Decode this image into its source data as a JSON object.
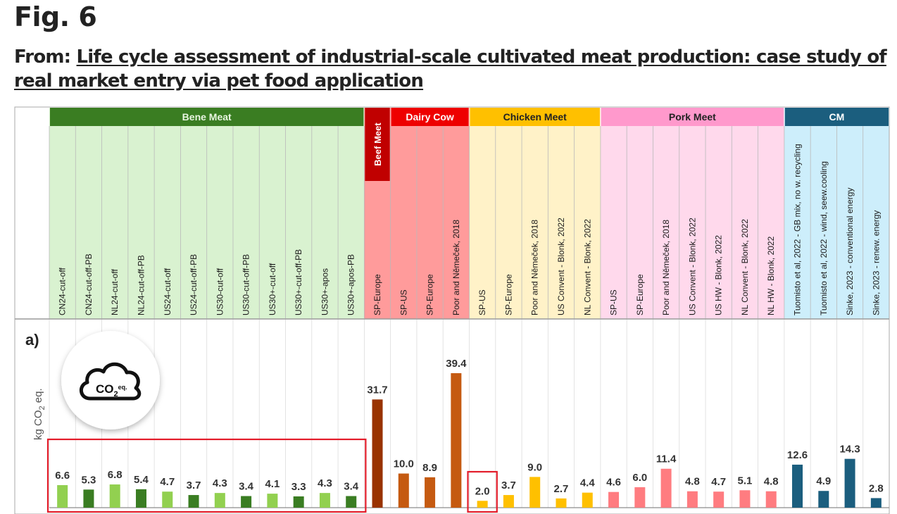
{
  "figure": {
    "label": "Fig. 6",
    "from_prefix": "From: ",
    "article_title": "Life cycle assessment of industrial-scale cultivated meat production: case study of real market entry via pet food application",
    "panel_label": "a)",
    "icon": {
      "name": "co2-cloud-icon",
      "text_main": "CO",
      "text_sub": "2",
      "text_sup": "eq."
    }
  },
  "chart_data": {
    "type": "bar",
    "title": "",
    "xlabel": "",
    "ylabel": "kg CO2 eq.",
    "ylim": [
      0,
      40
    ],
    "grid": "vertical separators only",
    "legend": "none (group headers on top)",
    "groups": [
      {
        "name": "Bene Meat",
        "header_color": "#3a7d22",
        "cell_color": "#d9f2d0",
        "start": 0,
        "count": 12
      },
      {
        "name": "Beef Meet",
        "header_color": "#c00000",
        "cell_color": "#ff9b9b",
        "start": 12,
        "count": 1,
        "vertical": true
      },
      {
        "name": "Dairy Cow",
        "header_color": "#ee0000",
        "cell_color": "#ff9b9b",
        "start": 13,
        "count": 3
      },
      {
        "name": "Chicken Meet",
        "header_color": "#ffc000",
        "cell_color": "#fff2c8",
        "start": 16,
        "count": 5
      },
      {
        "name": "Pork Meet",
        "header_color": "#ff99cc",
        "cell_color": "#ffd9ec",
        "start": 21,
        "count": 7
      },
      {
        "name": "CM",
        "header_color": "#1b5e7e",
        "cell_color": "#cdeefb",
        "start": 28,
        "count": 4
      }
    ],
    "categories": [
      "CN24-cut-off",
      "CN24-cut-off-PB",
      "NL24-cut-off",
      "NL24-cut-off-PB",
      "US24-cut-off",
      "US24-cut-off-PB",
      "US30-cut-off",
      "US30-cut-off-PB",
      "US30+-cut-off",
      "US30+-cut-off-PB",
      "US30+-apos",
      "US30+-apos-PB",
      "SP-Europe",
      "SP-US",
      "SP-Europe",
      "Poor and Němeček, 2018",
      "SP-US",
      "SP-Europe",
      "Poor and Němeček, 2018",
      "US Convent - Blonk, 2022",
      "NL Convent - Blonk, 2022",
      "SP-US",
      "SP-Europe",
      "Poor and Němeček, 2018",
      "US Convent - Blonk, 2022",
      "US HW - Blonk, 2022",
      "NL Convent - Blonk, 2022",
      "NL HW - Blonk, 2022",
      "Tuomisto et al, 2022 - GB mix, no w. recycling",
      "Tuomisto et al, 2022 - wind, seew.cooling",
      "Sinke, 2023 - conventional energy",
      "Sinke, 2023 - renew. energy"
    ],
    "values": [
      6.6,
      5.3,
      6.8,
      5.4,
      4.7,
      3.7,
      4.3,
      3.4,
      4.1,
      3.3,
      4.3,
      3.4,
      31.7,
      10.0,
      8.9,
      39.4,
      2.0,
      3.7,
      9.0,
      2.7,
      4.4,
      4.6,
      6.0,
      11.4,
      4.8,
      4.7,
      5.1,
      4.8,
      12.6,
      4.9,
      14.3,
      2.8
    ],
    "labels": [
      "6.6",
      "5.3",
      "6.8",
      "5.4",
      "4.7",
      "3.7",
      "4.3",
      "3.4",
      "4.1",
      "3.3",
      "4.3",
      "3.4",
      "31.7",
      "10.0",
      "8.9",
      "39.4",
      "2.0",
      "3.7",
      "9.0",
      "2.7",
      "4.4",
      "4.6",
      "6.0",
      "11.4",
      "4.8",
      "4.7",
      "5.1",
      "4.8",
      "12.6",
      "4.9",
      "14.3",
      "2.8"
    ],
    "bar_colors": [
      "#92d050",
      "#3a7d22",
      "#92d050",
      "#3a7d22",
      "#92d050",
      "#3a7d22",
      "#92d050",
      "#3a7d22",
      "#92d050",
      "#3a7d22",
      "#92d050",
      "#3a7d22",
      "#993300",
      "#c55a11",
      "#c55a11",
      "#c55a11",
      "#ffc000",
      "#ffc000",
      "#ffc000",
      "#ffc000",
      "#ffc000",
      "#ff7c80",
      "#ff7c80",
      "#ff7c80",
      "#ff7c80",
      "#ff7c80",
      "#ff7c80",
      "#ff7c80",
      "#1b5e7e",
      "#1b5e7e",
      "#1b5e7e",
      "#1b5e7e"
    ],
    "highlights": [
      {
        "name": "bene-meat-highlight",
        "start": 0,
        "end": 11,
        "color": "#e31d2b"
      },
      {
        "name": "chicken-sp-us-highlight",
        "start": 16,
        "end": 16,
        "color": "#e31d2b"
      }
    ]
  }
}
